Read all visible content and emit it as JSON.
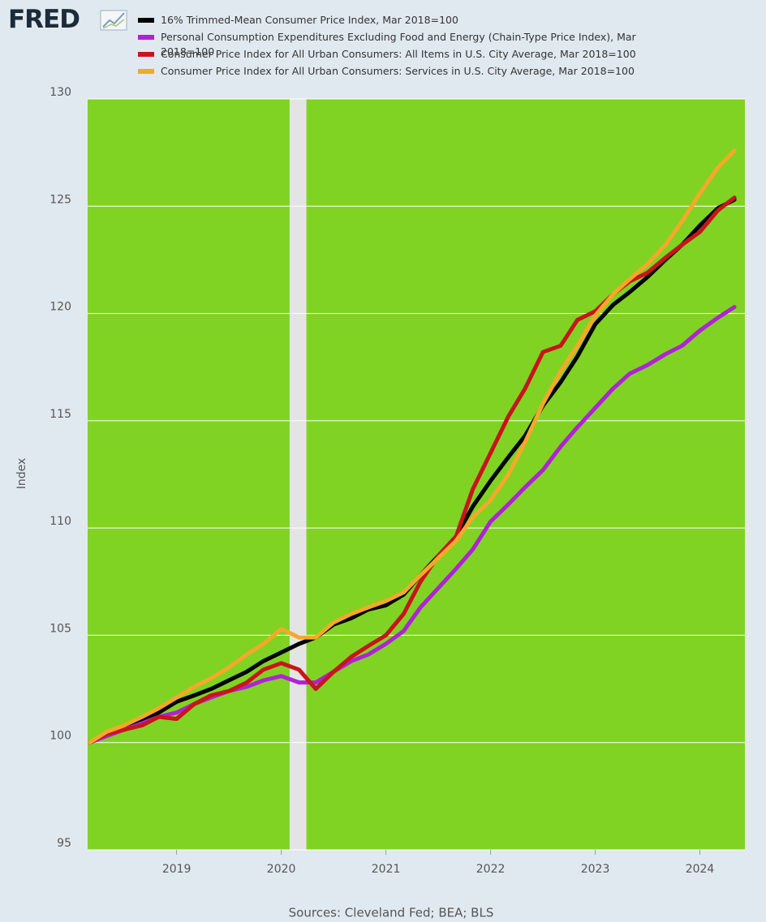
{
  "logo": "FRED",
  "chart_data": {
    "type": "line",
    "y_label": "Index",
    "source": "Sources: Cleveland Fed; BEA; BLS",
    "x": [
      2018.17,
      2018.33,
      2018.5,
      2018.67,
      2018.83,
      2019.0,
      2019.17,
      2019.33,
      2019.5,
      2019.67,
      2019.83,
      2020.0,
      2020.17,
      2020.33,
      2020.5,
      2020.67,
      2020.83,
      2021.0,
      2021.17,
      2021.33,
      2021.5,
      2021.67,
      2021.83,
      2022.0,
      2022.17,
      2022.33,
      2022.5,
      2022.67,
      2022.83,
      2023.0,
      2023.17,
      2023.33,
      2023.5,
      2023.67,
      2023.83,
      2024.0,
      2024.17,
      2024.33
    ],
    "xlim": [
      2018.15,
      2024.43
    ],
    "xticks": [
      2019,
      2020,
      2021,
      2022,
      2023,
      2024
    ],
    "ylim": [
      95,
      130
    ],
    "yticks": [
      95,
      100,
      105,
      110,
      115,
      120,
      125,
      130
    ],
    "grid": true,
    "background": "#80d322",
    "recessions": [
      [
        2020.08,
        2020.24
      ]
    ],
    "recession_color": "#e4e4e4",
    "series": [
      {
        "name": "16% Trimmed-Mean Consumer Price Index, Mar 2018=100",
        "color": "#000000",
        "values": [
          100,
          100.4,
          100.7,
          101.0,
          101.4,
          101.9,
          102.2,
          102.5,
          102.9,
          103.3,
          103.8,
          104.2,
          104.6,
          104.9,
          105.5,
          105.8,
          106.2,
          106.4,
          106.9,
          107.8,
          108.7,
          109.6,
          111.0,
          112.2,
          113.3,
          114.3,
          115.7,
          116.8,
          118.0,
          119.5,
          120.4,
          121.0,
          121.7,
          122.5,
          123.2,
          124.1,
          124.9,
          125.3
        ]
      },
      {
        "name": "Personal Consumption Expenditures Excluding Food and Energy (Chain-Type Price Index), Mar 2018=100",
        "color": "#b022d6",
        "values": [
          100,
          100.3,
          100.6,
          100.9,
          101.2,
          101.4,
          101.8,
          102.1,
          102.4,
          102.6,
          102.9,
          103.1,
          102.8,
          102.8,
          103.3,
          103.8,
          104.1,
          104.6,
          105.2,
          106.3,
          107.2,
          108.1,
          109.0,
          110.3,
          111.1,
          111.9,
          112.7,
          113.8,
          114.7,
          115.6,
          116.5,
          117.2,
          117.6,
          118.1,
          118.5,
          119.2,
          119.8,
          120.3
        ]
      },
      {
        "name": "Consumer Price Index for All Urban Consumers: All Items in U.S. City Average, Mar 2018=100",
        "color": "#c8141c",
        "values": [
          100,
          100.4,
          100.6,
          100.8,
          101.2,
          101.1,
          101.8,
          102.2,
          102.4,
          102.8,
          103.4,
          103.7,
          103.4,
          102.5,
          103.3,
          104.0,
          104.5,
          105.0,
          106.0,
          107.5,
          108.7,
          109.6,
          111.8,
          113.5,
          115.2,
          116.5,
          118.2,
          118.5,
          119.7,
          120.1,
          120.9,
          121.5,
          121.9,
          122.6,
          123.2,
          123.8,
          124.8,
          125.4
        ]
      },
      {
        "name": "Consumer Price Index for All Urban Consumers: Services in U.S. City Average, Mar 2018=100",
        "color": "#f5a82a",
        "values": [
          100,
          100.5,
          100.8,
          101.2,
          101.6,
          102.1,
          102.6,
          103.0,
          103.5,
          104.1,
          104.6,
          105.3,
          104.9,
          104.9,
          105.6,
          106.0,
          106.3,
          106.6,
          107.0,
          107.8,
          108.6,
          109.4,
          110.5,
          111.3,
          112.5,
          114.0,
          115.8,
          117.3,
          118.5,
          119.9,
          120.9,
          121.6,
          122.3,
          123.2,
          124.3,
          125.6,
          126.8,
          127.6
        ]
      }
    ]
  }
}
